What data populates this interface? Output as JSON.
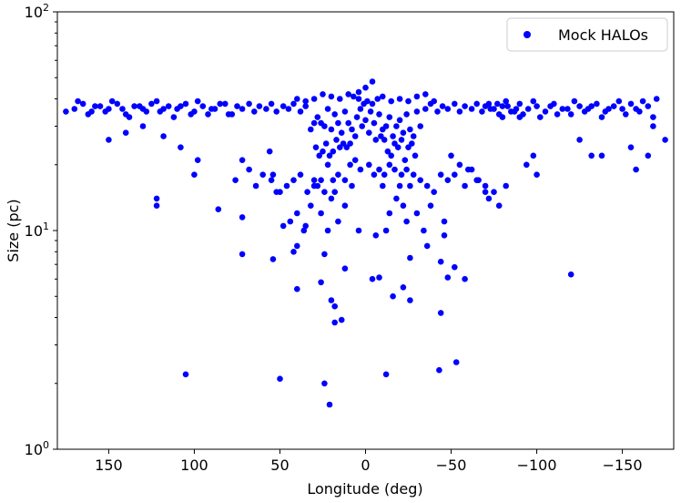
{
  "chart_data": {
    "type": "scatter",
    "xlabel": "Longitude (deg)",
    "ylabel": "Size (pc)",
    "xlim": [
      180,
      -180
    ],
    "ylim": [
      1,
      100
    ],
    "yscale": "log",
    "x_inverted": true,
    "grid": false,
    "legend_position": "top-right",
    "x_ticks": [
      150,
      100,
      50,
      0,
      -50,
      -100,
      -150
    ],
    "x_tick_labels": [
      "150",
      "100",
      "50",
      "0",
      "−50",
      "−100",
      "−150"
    ],
    "y_ticks": [
      1,
      10,
      100
    ],
    "y_tick_labels": [
      {
        "base": "10",
        "exp": "0"
      },
      {
        "base": "10",
        "exp": "1"
      },
      {
        "base": "10",
        "exp": "2"
      }
    ],
    "series": [
      {
        "name": "Mock HALOs",
        "color": "#0000ff",
        "marker": "circle",
        "points": [
          [
            -170,
            40
          ],
          [
            -165,
            37
          ],
          [
            -160,
            35
          ],
          [
            -155,
            38
          ],
          [
            -150,
            36
          ],
          [
            -145,
            37
          ],
          [
            -140,
            35
          ],
          [
            -135,
            38
          ],
          [
            -130,
            36
          ],
          [
            -125,
            37
          ],
          [
            -120,
            34
          ],
          [
            -115,
            36
          ],
          [
            -110,
            38
          ],
          [
            -105,
            35
          ],
          [
            -100,
            37
          ],
          [
            -95,
            36
          ],
          [
            -90,
            38
          ],
          [
            -85,
            35
          ],
          [
            -80,
            37
          ],
          [
            -75,
            36
          ],
          [
            -168,
            33
          ],
          [
            -162,
            39
          ],
          [
            -158,
            36
          ],
          [
            -152,
            34
          ],
          [
            -148,
            39
          ],
          [
            -142,
            36
          ],
          [
            -138,
            33
          ],
          [
            -132,
            37
          ],
          [
            -128,
            35
          ],
          [
            -122,
            39
          ],
          [
            -118,
            36
          ],
          [
            -112,
            34
          ],
          [
            -108,
            37
          ],
          [
            -102,
            33
          ],
          [
            -98,
            39
          ],
          [
            -92,
            34
          ],
          [
            -88,
            36
          ],
          [
            -82,
            39
          ],
          [
            -78,
            34
          ],
          [
            -72,
            38
          ],
          [
            170,
            36
          ],
          [
            165,
            38
          ],
          [
            160,
            35
          ],
          [
            155,
            37
          ],
          [
            150,
            36
          ],
          [
            145,
            38
          ],
          [
            140,
            34
          ],
          [
            135,
            37
          ],
          [
            130,
            36
          ],
          [
            125,
            38
          ],
          [
            120,
            35
          ],
          [
            115,
            37
          ],
          [
            110,
            36
          ],
          [
            105,
            38
          ],
          [
            100,
            35
          ],
          [
            95,
            37
          ],
          [
            90,
            36
          ],
          [
            85,
            38
          ],
          [
            80,
            34
          ],
          [
            75,
            37
          ],
          [
            175,
            35
          ],
          [
            168,
            39
          ],
          [
            162,
            34
          ],
          [
            158,
            37
          ],
          [
            152,
            35
          ],
          [
            148,
            39
          ],
          [
            142,
            36
          ],
          [
            138,
            33
          ],
          [
            132,
            37
          ],
          [
            128,
            35
          ],
          [
            122,
            39
          ],
          [
            118,
            36
          ],
          [
            112,
            33
          ],
          [
            108,
            37
          ],
          [
            102,
            34
          ],
          [
            98,
            39
          ],
          [
            92,
            34
          ],
          [
            88,
            36
          ],
          [
            82,
            38
          ],
          [
            78,
            34
          ],
          [
            72,
            36
          ],
          [
            68,
            38
          ],
          [
            65,
            35
          ],
          [
            62,
            37
          ],
          [
            58,
            36
          ],
          [
            55,
            38
          ],
          [
            52,
            35
          ],
          [
            48,
            37
          ],
          [
            45,
            36
          ],
          [
            42,
            38
          ],
          [
            38,
            35
          ],
          [
            35,
            37
          ],
          [
            -35,
            36
          ],
          [
            -38,
            38
          ],
          [
            -42,
            35
          ],
          [
            -45,
            37
          ],
          [
            -48,
            36
          ],
          [
            -52,
            38
          ],
          [
            -55,
            35
          ],
          [
            -58,
            37
          ],
          [
            -62,
            36
          ],
          [
            -65,
            38
          ],
          [
            -68,
            35
          ],
          [
            -70,
            37
          ],
          [
            -73,
            36
          ],
          [
            -77,
            38
          ],
          [
            -80,
            33
          ],
          [
            -83,
            37
          ],
          [
            -87,
            35
          ],
          [
            -90,
            33
          ],
          [
            0,
            32
          ],
          [
            2,
            30
          ],
          [
            -2,
            28
          ],
          [
            5,
            33
          ],
          [
            -5,
            31
          ],
          [
            8,
            29
          ],
          [
            -8,
            34
          ],
          [
            10,
            31
          ],
          [
            -10,
            29
          ],
          [
            12,
            35
          ],
          [
            -12,
            30
          ],
          [
            14,
            28
          ],
          [
            -14,
            33
          ],
          [
            16,
            31
          ],
          [
            -16,
            27
          ],
          [
            18,
            34
          ],
          [
            -18,
            30
          ],
          [
            20,
            29
          ],
          [
            -20,
            32
          ],
          [
            22,
            36
          ],
          [
            -22,
            28
          ],
          [
            24,
            30
          ],
          [
            -24,
            34
          ],
          [
            26,
            31
          ],
          [
            -26,
            29
          ],
          [
            28,
            33
          ],
          [
            -28,
            27
          ],
          [
            30,
            31
          ],
          [
            -30,
            35
          ],
          [
            32,
            29
          ],
          [
            -32,
            30
          ],
          [
            3,
            36
          ],
          [
            -3,
            35
          ],
          [
            6,
            27
          ],
          [
            -6,
            26
          ],
          [
            9,
            25
          ],
          [
            -9,
            27
          ],
          [
            11,
            24
          ],
          [
            -11,
            26
          ],
          [
            13,
            25
          ],
          [
            -13,
            23
          ],
          [
            15,
            24
          ],
          [
            -15,
            22
          ],
          [
            17,
            26
          ],
          [
            -17,
            25
          ],
          [
            19,
            23
          ],
          [
            -19,
            24
          ],
          [
            21,
            22
          ],
          [
            -21,
            26
          ],
          [
            23,
            25
          ],
          [
            -23,
            21
          ],
          [
            25,
            23
          ],
          [
            -25,
            24
          ],
          [
            27,
            22
          ],
          [
            -27,
            25
          ],
          [
            29,
            24
          ],
          [
            -29,
            22
          ],
          [
            1,
            38
          ],
          [
            -1,
            39
          ],
          [
            4,
            40
          ],
          [
            -4,
            38
          ],
          [
            7,
            41
          ],
          [
            -7,
            40
          ],
          [
            10,
            42
          ],
          [
            -10,
            41
          ],
          [
            15,
            40
          ],
          [
            -15,
            39
          ],
          [
            20,
            41
          ],
          [
            -20,
            40
          ],
          [
            25,
            42
          ],
          [
            -25,
            39
          ],
          [
            30,
            40
          ],
          [
            -30,
            41
          ],
          [
            35,
            39
          ],
          [
            -35,
            42
          ],
          [
            40,
            40
          ],
          [
            -40,
            39
          ],
          [
            4,
            43
          ],
          [
            -4,
            48
          ],
          [
            0,
            45
          ],
          [
            -2,
            20
          ],
          [
            3,
            19
          ],
          [
            -5,
            18
          ],
          [
            6,
            21
          ],
          [
            -8,
            19
          ],
          [
            9,
            20
          ],
          [
            -11,
            18
          ],
          [
            12,
            17
          ],
          [
            -14,
            20
          ],
          [
            16,
            18
          ],
          [
            -17,
            19
          ],
          [
            19,
            17
          ],
          [
            -21,
            18
          ],
          [
            22,
            20
          ],
          [
            -24,
            19
          ],
          [
            26,
            17
          ],
          [
            -28,
            18
          ],
          [
            8,
            16
          ],
          [
            -10,
            16
          ],
          [
            18,
            15
          ],
          [
            -20,
            16
          ],
          [
            24,
            15
          ],
          [
            -26,
            16
          ],
          [
            30,
            16
          ],
          [
            -32,
            17
          ],
          [
            34,
            15
          ],
          [
            -36,
            16
          ],
          [
            38,
            18
          ],
          [
            -40,
            15
          ],
          [
            42,
            17
          ],
          [
            -44,
            18
          ],
          [
            46,
            16
          ],
          [
            -48,
            17
          ],
          [
            50,
            15
          ],
          [
            -52,
            18
          ],
          [
            55,
            17
          ],
          [
            -58,
            16
          ],
          [
            -62,
            19
          ],
          [
            -66,
            17
          ],
          [
            -70,
            15
          ],
          [
            60,
            18
          ],
          [
            64,
            16
          ],
          [
            68,
            19
          ],
          [
            72,
            21
          ],
          [
            76,
            17
          ],
          [
            -72,
            14
          ],
          [
            -75,
            15
          ],
          [
            -78,
            13
          ],
          [
            -82,
            16
          ],
          [
            20,
            14
          ],
          [
            -18,
            14
          ],
          [
            12,
            13
          ],
          [
            -14,
            12
          ],
          [
            26,
            12
          ],
          [
            -22,
            13
          ],
          [
            32,
            13
          ],
          [
            -30,
            12
          ],
          [
            40,
            12
          ],
          [
            -38,
            13
          ],
          [
            44,
            11
          ],
          [
            -46,
            11
          ],
          [
            36,
            10
          ],
          [
            -34,
            10
          ],
          [
            22,
            10
          ],
          [
            -24,
            11
          ],
          [
            16,
            11
          ],
          [
            -12,
            10
          ],
          [
            4,
            10
          ],
          [
            -6,
            9.5
          ],
          [
            -46,
            9.5
          ],
          [
            -36,
            8.5
          ],
          [
            40,
            8.5
          ],
          [
            -26,
            7.5
          ],
          [
            24,
            7.8
          ],
          [
            -44,
            7.2
          ],
          [
            54,
            7.4
          ],
          [
            -52,
            6.8
          ],
          [
            12,
            6.7
          ],
          [
            -8,
            6.1
          ],
          [
            26,
            5.8
          ],
          [
            -22,
            5.5
          ],
          [
            -48,
            6.1
          ],
          [
            -58,
            6.0
          ],
          [
            40,
            5.4
          ],
          [
            -16,
            5.0
          ],
          [
            -26,
            4.8
          ],
          [
            20,
            4.8
          ],
          [
            18,
            4.5
          ],
          [
            -44,
            4.2
          ],
          [
            -4,
            6.0
          ],
          [
            18,
            3.8
          ],
          [
            14,
            3.9
          ],
          [
            -43,
            2.3
          ],
          [
            -53,
            2.5
          ],
          [
            -12,
            2.2
          ],
          [
            24,
            2.0
          ],
          [
            21,
            1.6
          ],
          [
            50,
            2.1
          ],
          [
            105,
            2.2
          ],
          [
            122,
            14.0
          ],
          [
            122,
            13.0
          ],
          [
            118,
            27.0
          ],
          [
            108,
            24.0
          ],
          [
            100,
            18.0
          ],
          [
            98,
            21.0
          ],
          [
            86,
            12.5
          ],
          [
            72,
            11.5
          ],
          [
            72,
            7.8
          ],
          [
            56,
            23.0
          ],
          [
            54,
            18.0
          ],
          [
            52,
            15.0
          ],
          [
            48,
            10.5
          ],
          [
            42,
            8.0
          ],
          [
            35,
            10.5
          ],
          [
            30,
            17.0
          ],
          [
            28,
            16.0
          ],
          [
            -50,
            22.0
          ],
          [
            -55,
            20.0
          ],
          [
            -60,
            19.0
          ],
          [
            -65,
            17.0
          ],
          [
            -70,
            16.0
          ],
          [
            -98,
            22.0
          ],
          [
            -100,
            18.0
          ],
          [
            -132,
            22.0
          ],
          [
            -138,
            22.0
          ],
          [
            -155,
            24.0
          ],
          [
            -158,
            19.0
          ],
          [
            -165,
            22.0
          ],
          [
            -168,
            30.0
          ],
          [
            -175,
            26.0
          ],
          [
            -120,
            6.3
          ],
          [
            -125,
            26.0
          ],
          [
            -94,
            20.0
          ],
          [
            130,
            30.0
          ],
          [
            140,
            28.0
          ],
          [
            150,
            26.0
          ]
        ]
      }
    ]
  }
}
